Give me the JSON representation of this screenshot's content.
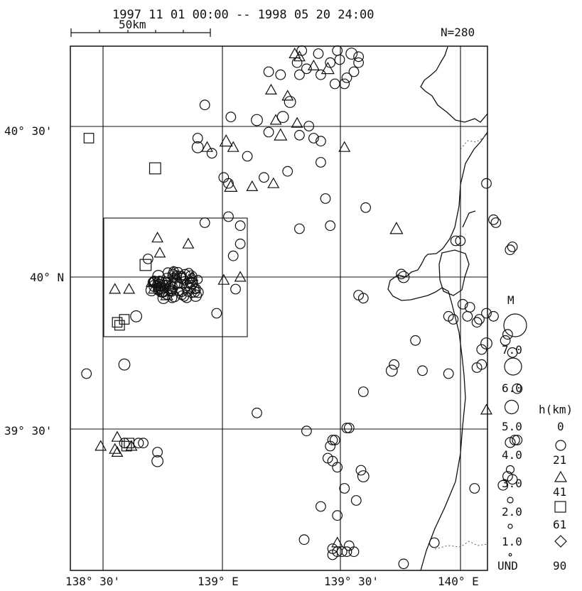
{
  "header": {
    "period": "1997 11 01 00:00 -- 1998 05 20 24:00",
    "scale_label": "50km",
    "count": "N=280"
  },
  "axes": {
    "lat_labels": [
      "40° 30'",
      "40° N",
      "39° 30'"
    ],
    "lon_labels": [
      "138° 30'",
      "139° E",
      "139° 30'",
      "140° E"
    ]
  },
  "magnitude_legend": {
    "title": "M",
    "labels": [
      "7.0",
      "6.0",
      "5.0",
      "4.0",
      "3.0",
      "2.0",
      "1.0",
      "UND"
    ]
  },
  "depth_legend": {
    "title": "h(km)",
    "labels": [
      "0",
      "21",
      "41",
      "61",
      "90"
    ]
  },
  "chart_data": {
    "type": "scatter",
    "title": "1997 11 01 00:00 -- 1998 05 20 24:00",
    "count_label": "N=280",
    "xlabel": "",
    "ylabel": "",
    "xlim": [
      138.4,
      140.05
    ],
    "ylim": [
      39.05,
      40.78
    ],
    "lon_ticks": [
      138.5,
      139.0,
      139.5,
      140.0
    ],
    "lat_ticks": [
      39.5,
      40.0,
      40.5
    ],
    "grid": true,
    "depth_classes": [
      {
        "name": "0",
        "symbol": "circle"
      },
      {
        "name": "21",
        "symbol": "triangle"
      },
      {
        "name": "41",
        "symbol": "square"
      },
      {
        "name": "61",
        "symbol": "diamond"
      }
    ],
    "highlight_box": {
      "lon": [
        138.51,
        139.09
      ],
      "lat": [
        39.81,
        40.19
      ]
    },
    "cluster": {
      "lon": 138.81,
      "lat": 39.97,
      "n": 80
    },
    "events": [
      [
        139.34,
        40.75,
        2.5,
        "c"
      ],
      [
        139.41,
        40.74,
        2.5,
        "c"
      ],
      [
        139.49,
        40.75,
        2.5,
        "c"
      ],
      [
        139.55,
        40.74,
        3,
        "c"
      ],
      [
        139.31,
        40.74,
        2.5,
        "t"
      ],
      [
        139.33,
        40.73,
        2.5,
        "t"
      ],
      [
        139.32,
        40.71,
        2.5,
        "c"
      ],
      [
        139.39,
        40.7,
        2.5,
        "t"
      ],
      [
        139.46,
        40.71,
        2.5,
        "c"
      ],
      [
        139.5,
        40.72,
        2.5,
        "c"
      ],
      [
        139.58,
        40.73,
        2.5,
        "c"
      ],
      [
        139.58,
        40.71,
        2.5,
        "c"
      ],
      [
        139.45,
        40.69,
        3,
        "t"
      ],
      [
        139.36,
        40.69,
        2.5,
        "c"
      ],
      [
        139.42,
        40.67,
        2.5,
        "c"
      ],
      [
        139.56,
        40.68,
        2.5,
        "c"
      ],
      [
        139.2,
        40.68,
        2.5,
        "c"
      ],
      [
        139.25,
        40.67,
        2.5,
        "c"
      ],
      [
        139.33,
        40.67,
        2.5,
        "c"
      ],
      [
        139.53,
        40.66,
        2.5,
        "c"
      ],
      [
        139.48,
        40.64,
        2.5,
        "c"
      ],
      [
        139.52,
        40.64,
        2.5,
        "c"
      ],
      [
        139.21,
        40.62,
        2.5,
        "t"
      ],
      [
        139.29,
        40.58,
        3,
        "c"
      ],
      [
        139.28,
        40.6,
        2.5,
        "t"
      ],
      [
        138.93,
        40.57,
        2.5,
        "c"
      ],
      [
        139.04,
        40.53,
        2.5,
        "c"
      ],
      [
        139.26,
        40.53,
        3,
        "c"
      ],
      [
        139.15,
        40.52,
        3,
        "c"
      ],
      [
        139.23,
        40.52,
        2.5,
        "t"
      ],
      [
        139.32,
        40.51,
        2.5,
        "t"
      ],
      [
        139.37,
        40.5,
        2.5,
        "c"
      ],
      [
        139.2,
        40.48,
        2.5,
        "c"
      ],
      [
        139.25,
        40.47,
        3,
        "t"
      ],
      [
        139.33,
        40.47,
        2.5,
        "c"
      ],
      [
        139.39,
        40.46,
        2.5,
        "c"
      ],
      [
        139.42,
        40.45,
        2.5,
        "c"
      ],
      [
        138.9,
        40.46,
        2.5,
        "c"
      ],
      [
        139.02,
        40.45,
        3,
        "t"
      ],
      [
        139.05,
        40.43,
        2.5,
        "t"
      ],
      [
        138.9,
        40.43,
        3,
        "c"
      ],
      [
        138.94,
        40.43,
        2.5,
        "t"
      ],
      [
        138.96,
        40.41,
        2.5,
        "c"
      ],
      [
        139.11,
        40.4,
        2.5,
        "c"
      ],
      [
        139.52,
        40.43,
        2.5,
        "t"
      ],
      [
        139.42,
        40.38,
        2.5,
        "c"
      ],
      [
        138.44,
        40.46,
        2.5,
        "s"
      ],
      [
        138.72,
        40.36,
        3,
        "s"
      ],
      [
        139.01,
        40.33,
        2.5,
        "c"
      ],
      [
        139.03,
        40.31,
        2.5,
        "c"
      ],
      [
        139.04,
        40.3,
        3,
        "t"
      ],
      [
        139.13,
        40.3,
        2.5,
        "t"
      ],
      [
        139.18,
        40.33,
        2.5,
        "c"
      ],
      [
        139.22,
        40.31,
        2.5,
        "t"
      ],
      [
        139.28,
        40.35,
        2.5,
        "c"
      ],
      [
        139.44,
        40.26,
        2.5,
        "c"
      ],
      [
        139.61,
        40.23,
        2.5,
        "c"
      ],
      [
        139.33,
        40.16,
        2.5,
        "c"
      ],
      [
        139.46,
        40.17,
        2.5,
        "c"
      ],
      [
        139.08,
        40.17,
        2.5,
        "c"
      ],
      [
        139.74,
        40.16,
        3,
        "t"
      ],
      [
        138.93,
        40.18,
        2.5,
        "c"
      ],
      [
        139.03,
        40.2,
        2.5,
        "c"
      ],
      [
        139.08,
        40.11,
        2.5,
        "c"
      ],
      [
        139.05,
        40.07,
        2.5,
        "c"
      ],
      [
        138.73,
        40.13,
        2.5,
        "t"
      ],
      [
        138.86,
        40.11,
        2.5,
        "t"
      ],
      [
        138.69,
        40.06,
        2.5,
        "c"
      ],
      [
        138.68,
        40.04,
        3,
        "s"
      ],
      [
        139.08,
        40.0,
        2.5,
        "t"
      ],
      [
        139.01,
        39.99,
        2.5,
        "t"
      ],
      [
        138.74,
        40.08,
        2.5,
        "t"
      ],
      [
        138.55,
        39.96,
        2.5,
        "t"
      ],
      [
        138.61,
        39.96,
        2.5,
        "t"
      ],
      [
        139.06,
        39.96,
        2.5,
        "c"
      ],
      [
        138.98,
        39.88,
        2.5,
        "c"
      ],
      [
        138.64,
        39.87,
        3,
        "c"
      ],
      [
        138.59,
        39.86,
        2.5,
        "s"
      ],
      [
        138.56,
        39.85,
        2.5,
        "s"
      ],
      [
        138.57,
        39.84,
        2.5,
        "s"
      ],
      [
        139.76,
        40.01,
        2.5,
        "c"
      ],
      [
        139.77,
        40.0,
        3,
        "c"
      ],
      [
        139.58,
        39.94,
        2.5,
        "c"
      ],
      [
        139.6,
        39.93,
        2.5,
        "c"
      ],
      [
        140.12,
        40.31,
        2.5,
        "c"
      ],
      [
        140.15,
        40.19,
        2.5,
        "c"
      ],
      [
        140.16,
        40.18,
        2.5,
        "c"
      ],
      [
        140.23,
        40.1,
        2.5,
        "c"
      ],
      [
        140.22,
        40.09,
        2.5,
        "c"
      ],
      [
        139.99,
        40.12,
        2.5,
        "c"
      ],
      [
        140.01,
        40.12,
        2.5,
        "c"
      ],
      [
        138.59,
        39.71,
        3,
        "c"
      ],
      [
        138.43,
        39.68,
        2.5,
        "c"
      ],
      [
        139.15,
        39.55,
        2.5,
        "c"
      ],
      [
        139.72,
        39.69,
        3,
        "c"
      ],
      [
        139.73,
        39.71,
        2.5,
        "c"
      ],
      [
        139.96,
        39.87,
        2.5,
        "c"
      ],
      [
        139.98,
        39.86,
        2.5,
        "c"
      ],
      [
        140.04,
        39.87,
        2.5,
        "c"
      ],
      [
        140.08,
        39.85,
        2.5,
        "c"
      ],
      [
        140.09,
        39.86,
        2.5,
        "c"
      ],
      [
        140.02,
        39.91,
        2.5,
        "c"
      ],
      [
        140.05,
        39.9,
        2.5,
        "c"
      ],
      [
        140.12,
        39.88,
        2.5,
        "c"
      ],
      [
        140.12,
        39.78,
        3,
        "c"
      ],
      [
        140.2,
        39.79,
        2.5,
        "c"
      ],
      [
        140.1,
        39.71,
        2.5,
        "c"
      ],
      [
        140.08,
        39.7,
        2.5,
        "c"
      ],
      [
        139.96,
        39.68,
        2.5,
        "c"
      ],
      [
        140.21,
        39.81,
        2.5,
        "c"
      ],
      [
        140.15,
        39.87,
        2.5,
        "c"
      ],
      [
        140.23,
        39.75,
        2.5,
        "c"
      ],
      [
        140.12,
        39.56,
        2.5,
        "t"
      ],
      [
        139.47,
        39.46,
        2.5,
        "c"
      ],
      [
        139.48,
        39.46,
        2.5,
        "c"
      ],
      [
        139.46,
        39.44,
        2.5,
        "c"
      ],
      [
        139.36,
        39.49,
        2.5,
        "c"
      ],
      [
        139.54,
        39.5,
        2.5,
        "c"
      ],
      [
        139.53,
        39.5,
        2.5,
        "c"
      ],
      [
        138.56,
        39.47,
        2.5,
        "t"
      ],
      [
        138.59,
        39.45,
        2.5,
        "c"
      ],
      [
        138.6,
        39.44,
        2.5,
        "s"
      ],
      [
        138.61,
        39.45,
        2.5,
        "s"
      ],
      [
        138.62,
        39.44,
        2.5,
        "t"
      ],
      [
        138.65,
        39.45,
        2.5,
        "c"
      ],
      [
        138.67,
        39.45,
        2.5,
        "c"
      ],
      [
        138.55,
        39.43,
        2.5,
        "t"
      ],
      [
        138.56,
        39.42,
        2.5,
        "t"
      ],
      [
        138.49,
        39.44,
        2.5,
        "t"
      ],
      [
        138.73,
        39.42,
        2.5,
        "c"
      ],
      [
        138.73,
        39.39,
        3,
        "c"
      ],
      [
        139.47,
        39.39,
        2.5,
        "c"
      ],
      [
        139.49,
        39.37,
        2.5,
        "c"
      ],
      [
        139.45,
        39.4,
        2.5,
        "c"
      ],
      [
        139.59,
        39.36,
        2.5,
        "c"
      ],
      [
        139.6,
        39.34,
        3,
        "c"
      ],
      [
        139.52,
        39.3,
        2.5,
        "c"
      ],
      [
        139.57,
        39.26,
        2.5,
        "c"
      ],
      [
        139.49,
        39.21,
        2.5,
        "c"
      ],
      [
        139.42,
        39.24,
        2.5,
        "c"
      ],
      [
        140.21,
        39.34,
        2.5,
        "c"
      ],
      [
        140.23,
        39.33,
        2.5,
        "c"
      ],
      [
        140.19,
        39.31,
        2.5,
        "c"
      ],
      [
        140.25,
        39.46,
        2.5,
        "c"
      ],
      [
        140.24,
        39.46,
        2.5,
        "c"
      ],
      [
        139.35,
        39.13,
        2.5,
        "c"
      ],
      [
        139.54,
        39.11,
        2.5,
        "c"
      ],
      [
        139.49,
        39.12,
        2.5,
        "t"
      ],
      [
        139.47,
        39.1,
        2.5,
        "c"
      ],
      [
        139.49,
        39.09,
        2.5,
        "c"
      ],
      [
        139.51,
        39.09,
        2.5,
        "c"
      ],
      [
        139.53,
        39.09,
        2.5,
        "c"
      ],
      [
        139.56,
        39.09,
        2.5,
        "c"
      ],
      [
        139.47,
        39.08,
        2.5,
        "c"
      ],
      [
        139.9,
        39.12,
        2.5,
        "c"
      ],
      [
        139.77,
        39.05,
        2.5,
        "c"
      ],
      [
        139.6,
        39.62,
        2.5,
        "c"
      ],
      [
        139.85,
        39.69,
        2.5,
        "c"
      ],
      [
        139.82,
        39.79,
        2.5,
        "c"
      ],
      [
        140.1,
        39.76,
        2.5,
        "c"
      ],
      [
        140.25,
        39.63,
        2.5,
        "c"
      ],
      [
        140.07,
        39.3,
        2.5,
        "c"
      ]
    ]
  }
}
